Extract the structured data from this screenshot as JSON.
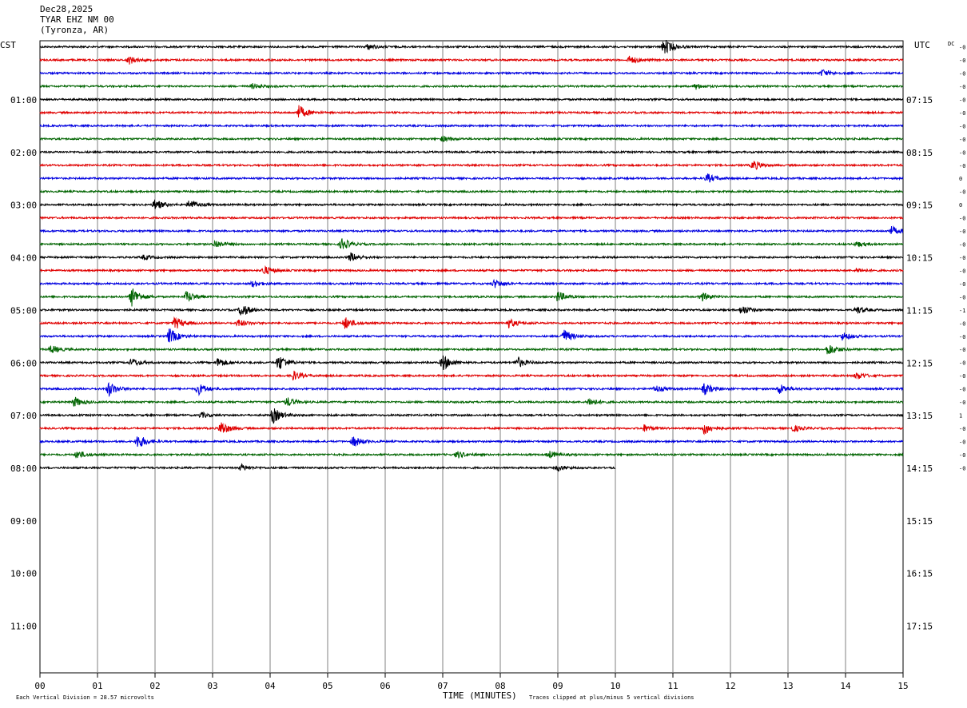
{
  "header": {
    "date": "Dec28,2025",
    "station": "TYAR EHZ NM 00",
    "location": "(Tyronza, AR)"
  },
  "axis_labels": {
    "left_zone": "CST",
    "right_zone": "UTC",
    "dc": "DC"
  },
  "footer": {
    "scale_note": "Each Vertical Division =   28.57 microvolts",
    "xlabel": "TIME (MINUTES)",
    "clip_note": "Traces clipped at plus/minus 5 vertical divisions"
  },
  "chart_data": {
    "type": "line",
    "xlabel": "TIME (MINUTES)",
    "xlim": [
      0,
      15
    ],
    "x_ticks": [
      "00",
      "01",
      "02",
      "03",
      "04",
      "05",
      "06",
      "07",
      "08",
      "09",
      "10",
      "11",
      "12",
      "13",
      "14",
      "15"
    ],
    "left_hour_labels": [
      "01:00",
      "02:00",
      "03:00",
      "04:00",
      "05:00",
      "06:00",
      "07:00",
      "08:00",
      "09:00",
      "10:00",
      "11:00"
    ],
    "right_hour_labels": [
      "07:15",
      "08:15",
      "09:15",
      "10:15",
      "11:15",
      "12:15",
      "13:15",
      "14:15",
      "15:15",
      "16:15",
      "17:15"
    ],
    "rows_per_hour": 4,
    "trace_colors": [
      "#000000",
      "#e00000",
      "#0000e0",
      "#006400"
    ],
    "trace_count": 33,
    "last_trace_end_minute": 10,
    "dc_offsets": [
      "-0",
      "-0",
      "-0",
      "-0",
      "-0",
      "-0",
      "-0",
      "-0",
      "-0",
      "-0",
      "0",
      "-0",
      "0",
      "-0",
      "-0",
      "-0",
      "-0",
      "-0",
      "-0",
      "-0",
      "-1",
      "-0",
      "-0",
      "-0",
      "-0",
      "-0",
      "-0",
      "-0",
      "1",
      "-0",
      "-0",
      "-0",
      "-0"
    ],
    "events": [
      {
        "row": 0,
        "minute": 10.85,
        "amp": 1.8
      },
      {
        "row": 0,
        "minute": 5.7,
        "amp": 0.6
      },
      {
        "row": 1,
        "minute": 1.55,
        "amp": 0.9
      },
      {
        "row": 1,
        "minute": 10.25,
        "amp": 0.9
      },
      {
        "row": 2,
        "minute": 13.6,
        "amp": 0.8
      },
      {
        "row": 3,
        "minute": 3.7,
        "amp": 0.6
      },
      {
        "row": 3,
        "minute": 11.4,
        "amp": 0.6
      },
      {
        "row": 5,
        "minute": 4.5,
        "amp": 1.6
      },
      {
        "row": 7,
        "minute": 7.0,
        "amp": 0.6
      },
      {
        "row": 9,
        "minute": 12.4,
        "amp": 1.1
      },
      {
        "row": 10,
        "minute": 11.6,
        "amp": 1.0
      },
      {
        "row": 12,
        "minute": 2.0,
        "amp": 1.2
      },
      {
        "row": 12,
        "minute": 2.6,
        "amp": 1.2
      },
      {
        "row": 14,
        "minute": 14.8,
        "amp": 1.0
      },
      {
        "row": 15,
        "minute": 3.05,
        "amp": 0.9
      },
      {
        "row": 15,
        "minute": 5.25,
        "amp": 1.3
      },
      {
        "row": 15,
        "minute": 14.2,
        "amp": 0.6
      },
      {
        "row": 16,
        "minute": 5.4,
        "amp": 1.0
      },
      {
        "row": 16,
        "minute": 1.8,
        "amp": 0.5
      },
      {
        "row": 17,
        "minute": 3.9,
        "amp": 1.0
      },
      {
        "row": 17,
        "minute": 14.2,
        "amp": 0.5
      },
      {
        "row": 18,
        "minute": 3.7,
        "amp": 0.7
      },
      {
        "row": 18,
        "minute": 7.9,
        "amp": 0.9
      },
      {
        "row": 19,
        "minute": 1.6,
        "amp": 2.2
      },
      {
        "row": 19,
        "minute": 2.55,
        "amp": 1.3
      },
      {
        "row": 19,
        "minute": 9.0,
        "amp": 1.2
      },
      {
        "row": 19,
        "minute": 11.5,
        "amp": 1.0
      },
      {
        "row": 20,
        "minute": 3.5,
        "amp": 1.6
      },
      {
        "row": 20,
        "minute": 12.2,
        "amp": 1.1
      },
      {
        "row": 20,
        "minute": 14.2,
        "amp": 0.8
      },
      {
        "row": 21,
        "minute": 2.35,
        "amp": 1.4
      },
      {
        "row": 21,
        "minute": 5.3,
        "amp": 1.4
      },
      {
        "row": 21,
        "minute": 8.15,
        "amp": 1.0
      },
      {
        "row": 21,
        "minute": 3.45,
        "amp": 0.8
      },
      {
        "row": 22,
        "minute": 2.25,
        "amp": 1.8
      },
      {
        "row": 22,
        "minute": 9.1,
        "amp": 1.6
      },
      {
        "row": 22,
        "minute": 13.95,
        "amp": 0.9
      },
      {
        "row": 23,
        "minute": 0.2,
        "amp": 0.9
      },
      {
        "row": 23,
        "minute": 13.7,
        "amp": 1.4
      },
      {
        "row": 24,
        "minute": 4.15,
        "amp": 1.8
      },
      {
        "row": 24,
        "minute": 7.0,
        "amp": 1.8
      },
      {
        "row": 24,
        "minute": 8.3,
        "amp": 1.2
      },
      {
        "row": 24,
        "minute": 3.1,
        "amp": 1.1
      },
      {
        "row": 24,
        "minute": 1.6,
        "amp": 0.9
      },
      {
        "row": 25,
        "minute": 4.4,
        "amp": 1.1
      },
      {
        "row": 25,
        "minute": 14.2,
        "amp": 0.8
      },
      {
        "row": 26,
        "minute": 1.2,
        "amp": 1.6
      },
      {
        "row": 26,
        "minute": 2.75,
        "amp": 1.3
      },
      {
        "row": 26,
        "minute": 11.55,
        "amp": 1.3
      },
      {
        "row": 26,
        "minute": 12.85,
        "amp": 1.2
      },
      {
        "row": 26,
        "minute": 10.7,
        "amp": 0.8
      },
      {
        "row": 27,
        "minute": 0.6,
        "amp": 1.1
      },
      {
        "row": 27,
        "minute": 4.3,
        "amp": 1.0
      },
      {
        "row": 27,
        "minute": 9.55,
        "amp": 0.9
      },
      {
        "row": 28,
        "minute": 4.05,
        "amp": 1.8
      },
      {
        "row": 28,
        "minute": 2.8,
        "amp": 0.6
      },
      {
        "row": 29,
        "minute": 3.15,
        "amp": 1.6
      },
      {
        "row": 29,
        "minute": 11.55,
        "amp": 1.4
      },
      {
        "row": 29,
        "minute": 10.5,
        "amp": 0.8
      },
      {
        "row": 29,
        "minute": 13.1,
        "amp": 0.7
      },
      {
        "row": 30,
        "minute": 1.7,
        "amp": 1.7
      },
      {
        "row": 30,
        "minute": 5.45,
        "amp": 1.2
      },
      {
        "row": 31,
        "minute": 0.65,
        "amp": 0.9
      },
      {
        "row": 31,
        "minute": 7.25,
        "amp": 0.8
      },
      {
        "row": 31,
        "minute": 8.85,
        "amp": 0.8
      },
      {
        "row": 32,
        "minute": 3.5,
        "amp": 0.7
      },
      {
        "row": 32,
        "minute": 9.0,
        "amp": 0.6
      }
    ]
  }
}
